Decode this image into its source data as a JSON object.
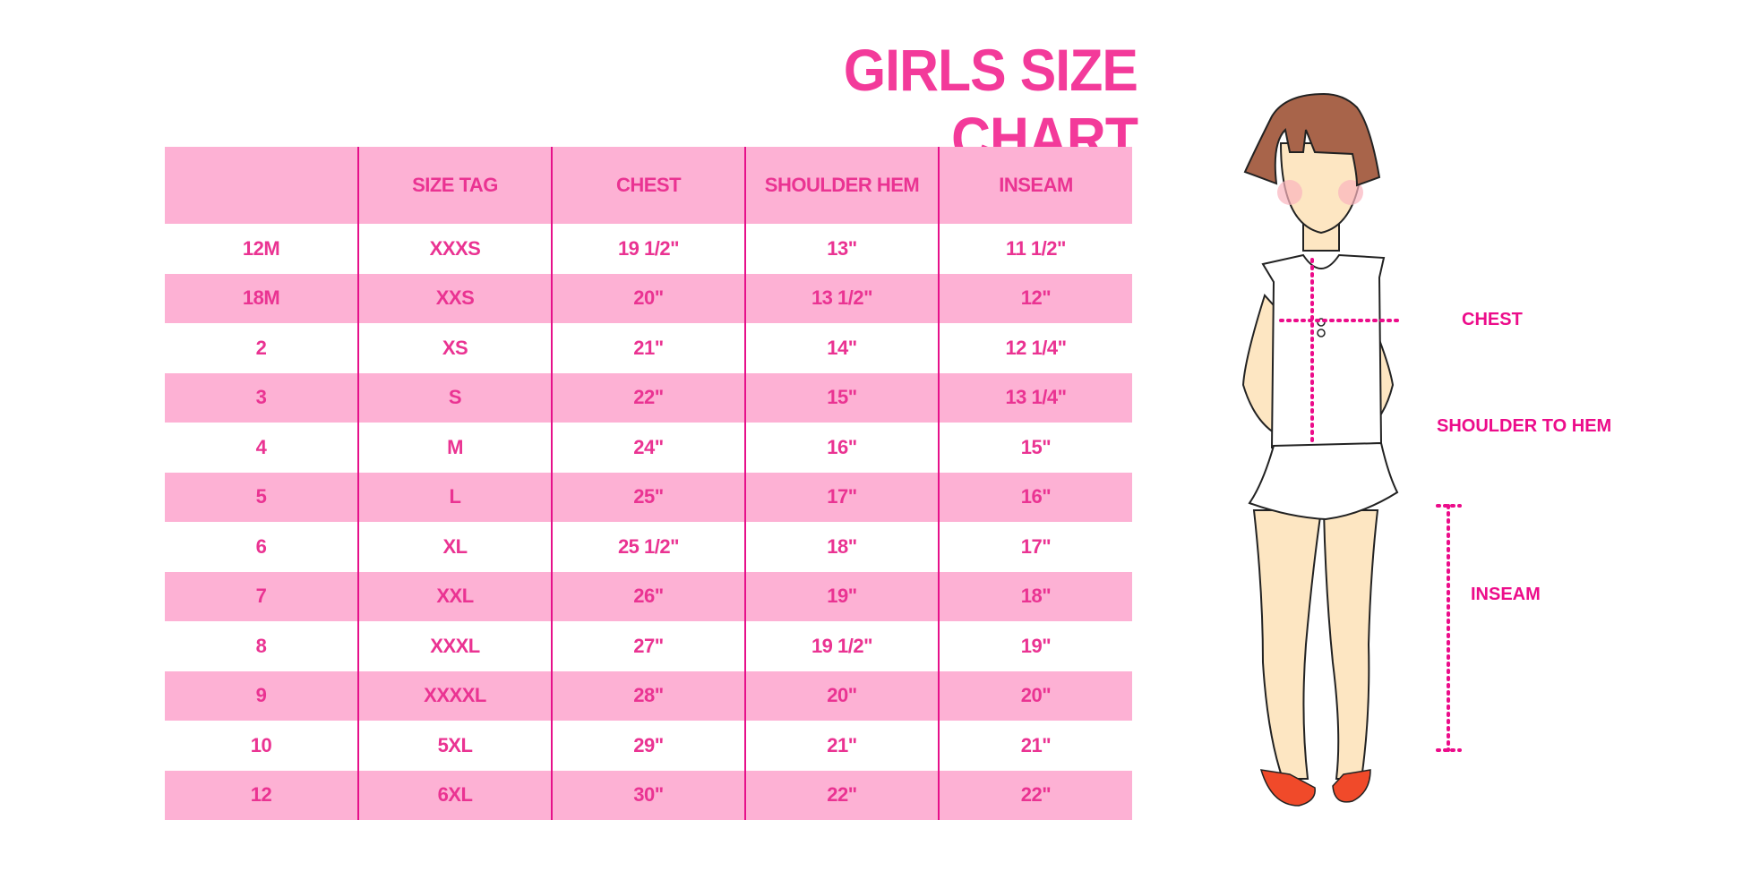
{
  "title": "GIRLS SIZE CHART",
  "table": {
    "headers": [
      "",
      "SIZE TAG",
      "CHEST",
      "SHOULDER HEM",
      "INSEAM"
    ],
    "rows": [
      [
        "12M",
        "XXXS",
        "19 1/2\"",
        "13\"",
        "11 1/2\""
      ],
      [
        "18M",
        "XXS",
        "20\"",
        "13 1/2\"",
        "12\""
      ],
      [
        "2",
        "XS",
        "21\"",
        "14\"",
        "12 1/4\""
      ],
      [
        "3",
        "S",
        "22\"",
        "15\"",
        "13 1/4\""
      ],
      [
        "4",
        "M",
        "24\"",
        "16\"",
        "15\""
      ],
      [
        "5",
        "L",
        "25\"",
        "17\"",
        "16\""
      ],
      [
        "6",
        "XL",
        "25 1/2\"",
        "18\"",
        "17\""
      ],
      [
        "7",
        "XXL",
        "26\"",
        "19\"",
        "18\""
      ],
      [
        "8",
        "XXXL",
        "27\"",
        "19 1/2\"",
        "19\""
      ],
      [
        "9",
        "XXXXL",
        "28\"",
        "20\"",
        "20\""
      ],
      [
        "10",
        "5XL",
        "29\"",
        "21\"",
        "21\""
      ],
      [
        "12",
        "6XL",
        "30\"",
        "22\"",
        "22\""
      ]
    ]
  },
  "figure": {
    "labels": {
      "chest": "CHEST",
      "shoulder_to_hem": "SHOULDER TO HEM",
      "inseam": "INSEAM"
    }
  },
  "colors": {
    "accent": "#f33a9a",
    "header_bg": "#fdb1d4",
    "divider": "#e6118a"
  }
}
